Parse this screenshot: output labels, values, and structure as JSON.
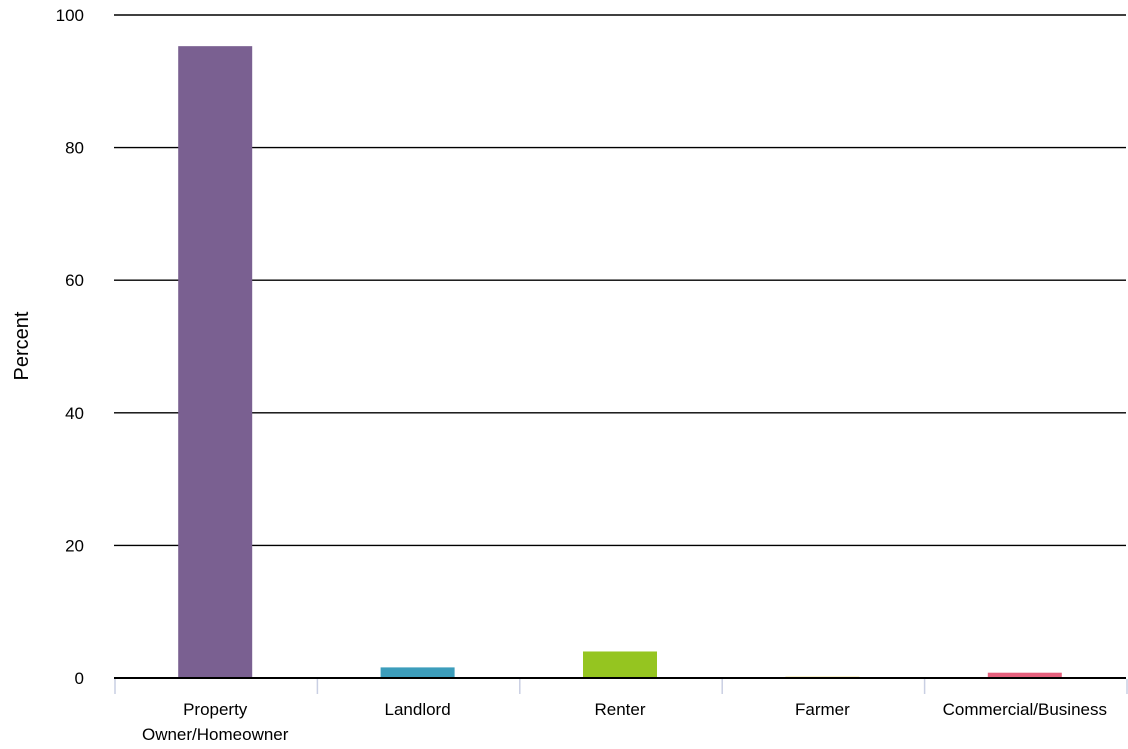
{
  "chart_data": {
    "type": "bar",
    "title": "",
    "xlabel": "",
    "ylabel": "Percent",
    "ylim": [
      0,
      100
    ],
    "yticks": [
      0,
      20,
      40,
      60,
      80,
      100
    ],
    "grid": true,
    "categories": [
      [
        "Property",
        "Owner/Homeowner"
      ],
      [
        "Landlord"
      ],
      [
        "Renter"
      ],
      [
        "Farmer"
      ],
      [
        "Commercial/Business"
      ]
    ],
    "values": [
      95.3,
      1.6,
      4.0,
      0.2,
      0.8
    ],
    "colors": [
      "#7a6091",
      "#3c9dbb",
      "#95c520",
      "#f2e39a",
      "#e5607d"
    ]
  }
}
